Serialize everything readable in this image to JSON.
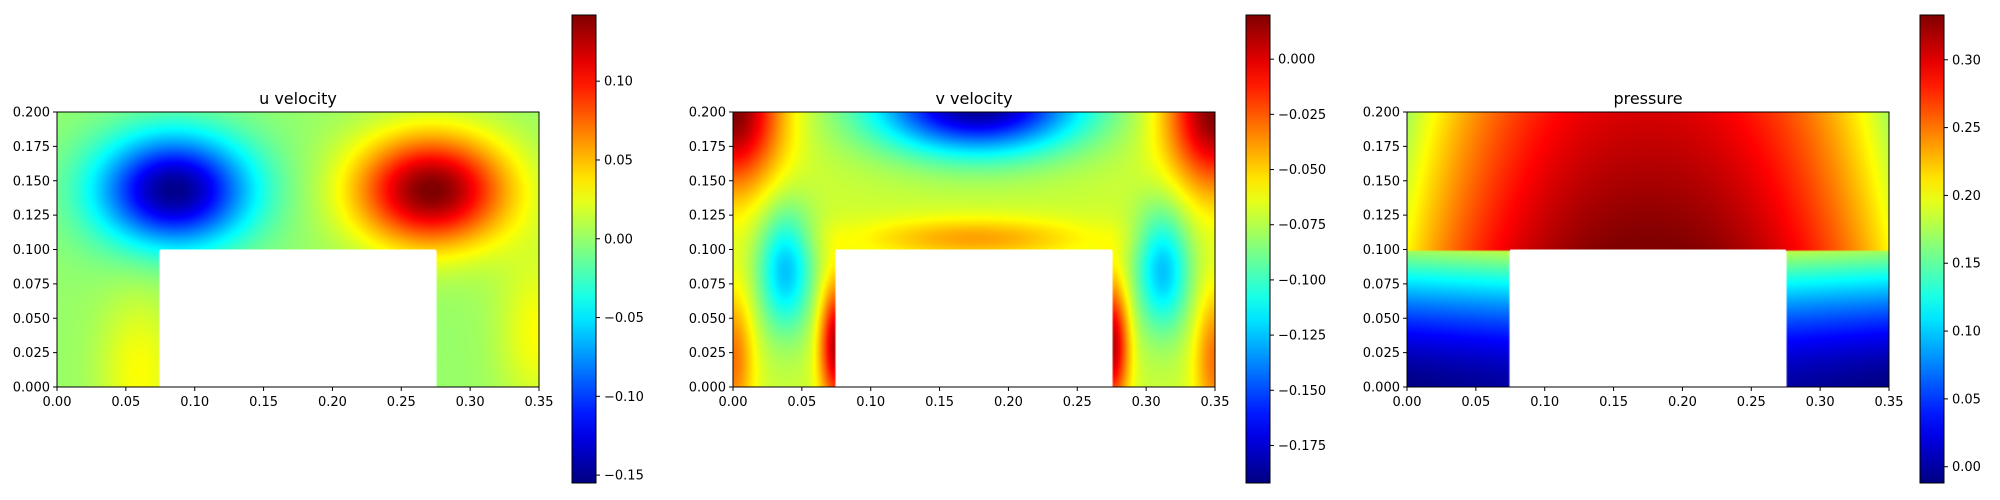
{
  "chart_data": [
    {
      "type": "heatmap",
      "title": "u velocity",
      "field": "u",
      "xlim": [
        0.0,
        0.35
      ],
      "ylim": [
        0.0,
        0.2
      ],
      "xticks": [
        0.0,
        0.05,
        0.1,
        0.15,
        0.2,
        0.25,
        0.3,
        0.35
      ],
      "yticks": [
        0.0,
        0.025,
        0.05,
        0.075,
        0.1,
        0.125,
        0.15,
        0.175,
        0.2
      ],
      "xtick_labels": [
        "0.00",
        "0.05",
        "0.10",
        "0.15",
        "0.20",
        "0.25",
        "0.30",
        "0.35"
      ],
      "ytick_labels": [
        "0.000",
        "0.025",
        "0.050",
        "0.075",
        "0.100",
        "0.125",
        "0.150",
        "0.175",
        "0.200"
      ],
      "obstacle": {
        "x": [
          0.075,
          0.275
        ],
        "y": [
          0.0,
          0.1
        ]
      },
      "domain_extent": {
        "x": [
          0.0,
          0.35
        ],
        "y": [
          0.0,
          0.2
        ]
      },
      "colormap": "jet",
      "vmin": -0.155,
      "vmax": 0.142,
      "colorbar_ticks": [
        -0.15,
        -0.1,
        -0.05,
        0.0,
        0.05,
        0.1
      ],
      "colorbar_tick_labels": [
        "−0.15",
        "−0.10",
        "−0.05",
        "0.00",
        "0.05",
        "0.10"
      ],
      "features": [
        {
          "x": 0.085,
          "y": 0.14,
          "value": -0.15
        },
        {
          "x": 0.27,
          "y": 0.14,
          "value": 0.14
        }
      ],
      "grid": false,
      "legend": "none"
    },
    {
      "type": "heatmap",
      "title": "v velocity",
      "field": "v",
      "xlim": [
        0.0,
        0.35
      ],
      "ylim": [
        0.0,
        0.2
      ],
      "xticks": [
        0.0,
        0.05,
        0.1,
        0.15,
        0.2,
        0.25,
        0.3,
        0.35
      ],
      "yticks": [
        0.0,
        0.025,
        0.05,
        0.075,
        0.1,
        0.125,
        0.15,
        0.175,
        0.2
      ],
      "xtick_labels": [
        "0.00",
        "0.05",
        "0.10",
        "0.15",
        "0.20",
        "0.25",
        "0.30",
        "0.35"
      ],
      "ytick_labels": [
        "0.000",
        "0.025",
        "0.050",
        "0.075",
        "0.100",
        "0.125",
        "0.150",
        "0.175",
        "0.200"
      ],
      "obstacle": {
        "x": [
          0.075,
          0.275
        ],
        "y": [
          0.0,
          0.1
        ]
      },
      "domain_extent": {
        "x": [
          0.0,
          0.35
        ],
        "y": [
          0.0,
          0.2
        ]
      },
      "colormap": "jet",
      "vmin": -0.192,
      "vmax": 0.02,
      "colorbar_ticks": [
        -0.175,
        -0.15,
        -0.125,
        -0.1,
        -0.075,
        -0.05,
        -0.025,
        0.0
      ],
      "colorbar_tick_labels": [
        "−0.175",
        "−0.150",
        "−0.125",
        "−0.100",
        "−0.075",
        "−0.050",
        "−0.025",
        "0.000"
      ],
      "features": [
        {
          "x": 0.18,
          "y": 0.2,
          "value": -0.19
        },
        {
          "x": 0.04,
          "y": 0.08,
          "value": -0.13
        },
        {
          "x": 0.31,
          "y": 0.08,
          "value": -0.13
        },
        {
          "x": 0.0,
          "y": 0.2,
          "value": 0.02
        },
        {
          "x": 0.35,
          "y": 0.2,
          "value": 0.02
        }
      ],
      "grid": false,
      "legend": "none"
    },
    {
      "type": "heatmap",
      "title": "pressure",
      "field": "p",
      "xlim": [
        0.0,
        0.35
      ],
      "ylim": [
        0.0,
        0.2
      ],
      "xticks": [
        0.0,
        0.05,
        0.1,
        0.15,
        0.2,
        0.25,
        0.3,
        0.35
      ],
      "yticks": [
        0.0,
        0.025,
        0.05,
        0.075,
        0.1,
        0.125,
        0.15,
        0.175,
        0.2
      ],
      "xtick_labels": [
        "0.00",
        "0.05",
        "0.10",
        "0.15",
        "0.20",
        "0.25",
        "0.30",
        "0.35"
      ],
      "ytick_labels": [
        "0.000",
        "0.025",
        "0.050",
        "0.075",
        "0.100",
        "0.125",
        "0.150",
        "0.175",
        "0.200"
      ],
      "obstacle": {
        "x": [
          0.075,
          0.275
        ],
        "y": [
          0.0,
          0.1
        ]
      },
      "domain_extent": {
        "x": [
          0.0,
          0.35
        ],
        "y": [
          0.0,
          0.2
        ]
      },
      "colormap": "jet",
      "vmin": -0.012,
      "vmax": 0.333,
      "colorbar_ticks": [
        0.0,
        0.05,
        0.1,
        0.15,
        0.2,
        0.25,
        0.3
      ],
      "colorbar_tick_labels": [
        "0.00",
        "0.05",
        "0.10",
        "0.15",
        "0.20",
        "0.25",
        "0.30"
      ],
      "features": [
        {
          "x": 0.175,
          "y": 0.1,
          "value": 0.33
        },
        {
          "x": 0.0,
          "y": 0.0,
          "value": -0.01
        },
        {
          "x": 0.35,
          "y": 0.0,
          "value": -0.01
        }
      ],
      "grid": false,
      "legend": "none"
    }
  ]
}
